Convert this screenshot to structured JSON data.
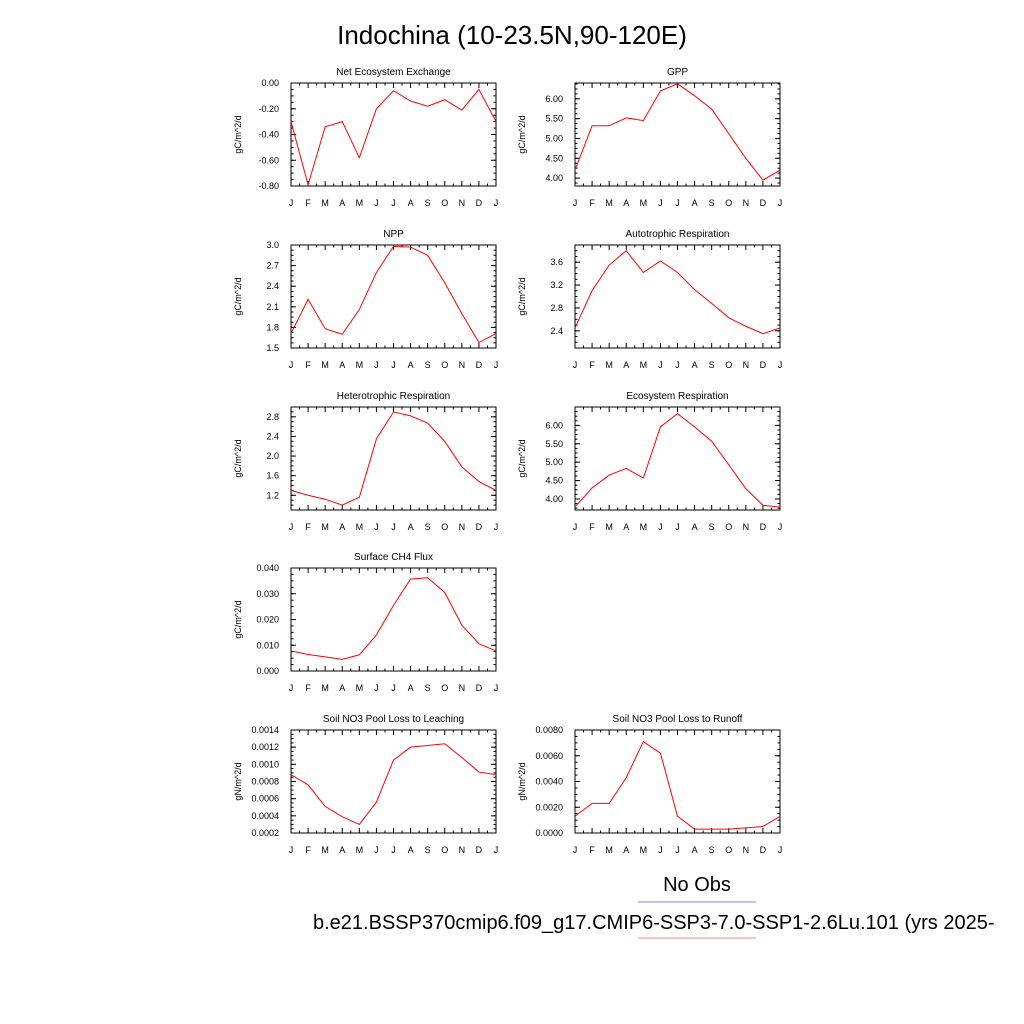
{
  "figure": {
    "title": "Indochina (10-23.5N,90-120E)",
    "legend_obs_label": "No Obs",
    "legend_case_label": "b.e21.BSSP370cmip6.f09_g17.CMIP6-SSP3-7.0-SSP1-2.6Lu.101 (yrs 2025-",
    "obs_color": "#8080ff",
    "case_color": "#ff8080",
    "series_color": "#ff0000"
  },
  "chart_data": [
    {
      "type": "line",
      "title": "Net Ecosystem Exchange",
      "ylabel": "gC/m^2/d",
      "categories": [
        "J",
        "F",
        "M",
        "A",
        "M",
        "J",
        "J",
        "A",
        "S",
        "O",
        "N",
        "D",
        "J"
      ],
      "values": [
        -0.3,
        -0.79,
        -0.34,
        -0.3,
        -0.58,
        -0.2,
        -0.06,
        -0.14,
        -0.18,
        -0.13,
        -0.21,
        -0.05,
        -0.3
      ],
      "ylim": [
        -0.8,
        0.0
      ],
      "yticks": [
        -0.8,
        -0.6,
        -0.4,
        -0.2,
        0.0
      ],
      "yticklabels": [
        "-0.80",
        "-0.60",
        "-0.40",
        "-0.20",
        "0.00"
      ]
    },
    {
      "type": "line",
      "title": "GPP",
      "ylabel": "gC/m^2/d",
      "categories": [
        "J",
        "F",
        "M",
        "A",
        "M",
        "J",
        "J",
        "A",
        "S",
        "O",
        "N",
        "D",
        "J"
      ],
      "values": [
        4.2,
        5.32,
        5.32,
        5.52,
        5.45,
        6.2,
        6.38,
        6.08,
        5.74,
        5.12,
        4.5,
        3.95,
        4.2
      ],
      "ylim": [
        3.8,
        6.4
      ],
      "yticks": [
        4.0,
        4.5,
        5.0,
        5.5,
        6.0
      ],
      "yticklabels": [
        "4.00",
        "4.50",
        "5.00",
        "5.50",
        "6.00"
      ]
    },
    {
      "type": "line",
      "title": "NPP",
      "ylabel": "gC/m^2/d",
      "categories": [
        "J",
        "F",
        "M",
        "A",
        "M",
        "J",
        "J",
        "A",
        "S",
        "O",
        "N",
        "D",
        "J"
      ],
      "values": [
        1.71,
        2.21,
        1.78,
        1.7,
        2.06,
        2.6,
        2.98,
        2.97,
        2.85,
        2.45,
        2.0,
        1.58,
        1.71
      ],
      "ylim": [
        1.5,
        3.0
      ],
      "yticks": [
        1.5,
        1.8,
        2.1,
        2.4,
        2.7,
        3.0
      ],
      "yticklabels": [
        "1.5",
        "1.8",
        "2.1",
        "2.4",
        "2.7",
        "3.0"
      ]
    },
    {
      "type": "line",
      "title": "Autotrophic Respiration",
      "ylabel": "gC/m^2/d",
      "categories": [
        "J",
        "F",
        "M",
        "A",
        "M",
        "J",
        "J",
        "A",
        "S",
        "O",
        "N",
        "D",
        "J"
      ],
      "values": [
        2.45,
        3.1,
        3.55,
        3.8,
        3.42,
        3.62,
        3.42,
        3.12,
        2.88,
        2.63,
        2.48,
        2.35,
        2.45
      ],
      "ylim": [
        2.1,
        3.9
      ],
      "yticks": [
        2.4,
        2.8,
        3.2,
        3.6
      ],
      "yticklabels": [
        "2.4",
        "2.8",
        "3.2",
        "3.6"
      ]
    },
    {
      "type": "line",
      "title": "Heterotrophic Respiration",
      "ylabel": "gC/m^2/d",
      "categories": [
        "J",
        "F",
        "M",
        "A",
        "M",
        "J",
        "J",
        "A",
        "S",
        "O",
        "N",
        "D",
        "J"
      ],
      "values": [
        1.3,
        1.2,
        1.12,
        1.0,
        1.16,
        2.35,
        2.9,
        2.82,
        2.67,
        2.3,
        1.78,
        1.48,
        1.3
      ],
      "ylim": [
        0.9,
        3.0
      ],
      "yticks": [
        1.2,
        1.6,
        2.0,
        2.4,
        2.8
      ],
      "yticklabels": [
        "1.2",
        "1.6",
        "2.0",
        "2.4",
        "2.8"
      ]
    },
    {
      "type": "line",
      "title": "Ecosystem Respiration",
      "ylabel": "gC/m^2/d",
      "categories": [
        "J",
        "F",
        "M",
        "A",
        "M",
        "J",
        "J",
        "A",
        "S",
        "O",
        "N",
        "D",
        "J"
      ],
      "values": [
        3.78,
        4.3,
        4.65,
        4.83,
        4.57,
        5.96,
        6.32,
        5.96,
        5.57,
        4.93,
        4.28,
        3.83,
        3.78
      ],
      "ylim": [
        3.7,
        6.5
      ],
      "yticks": [
        4.0,
        4.5,
        5.0,
        5.5,
        6.0
      ],
      "yticklabels": [
        "4.00",
        "4.50",
        "5.00",
        "5.50",
        "6.00"
      ]
    },
    {
      "type": "line",
      "title": "Surface CH4 Flux",
      "ylabel": "gC/m^2/d",
      "categories": [
        "J",
        "F",
        "M",
        "A",
        "M",
        "J",
        "J",
        "A",
        "S",
        "O",
        "N",
        "D",
        "J"
      ],
      "values": [
        0.0078,
        0.0064,
        0.0055,
        0.0045,
        0.0063,
        0.014,
        0.0255,
        0.0357,
        0.0362,
        0.0305,
        0.0178,
        0.0106,
        0.0078
      ],
      "ylim": [
        0.0,
        0.04
      ],
      "yticks": [
        0.0,
        0.01,
        0.02,
        0.03,
        0.04
      ],
      "yticklabels": [
        "0.000",
        "0.010",
        "0.020",
        "0.030",
        "0.040"
      ]
    },
    {
      "type": "line",
      "title": "Soil NO3 Pool Loss to Leaching",
      "ylabel": "gN/m^2/d",
      "categories": [
        "J",
        "F",
        "M",
        "A",
        "M",
        "J",
        "J",
        "A",
        "S",
        "O",
        "N",
        "D",
        "J"
      ],
      "values": [
        0.00088,
        0.00076,
        0.00051,
        0.00039,
        0.0003,
        0.00056,
        0.00105,
        0.0012,
        0.00122,
        0.00124,
        0.00108,
        0.00091,
        0.00088
      ],
      "ylim": [
        0.0002,
        0.0014
      ],
      "yticks": [
        0.0002,
        0.0004,
        0.0006,
        0.0008,
        0.001,
        0.0012,
        0.0014
      ],
      "yticklabels": [
        "0.0002",
        "0.0004",
        "0.0006",
        "0.0008",
        "0.0010",
        "0.0012",
        "0.0014"
      ]
    },
    {
      "type": "line",
      "title": "Soil NO3 Pool Loss to Runoff",
      "ylabel": "gN/m^2/d",
      "categories": [
        "J",
        "F",
        "M",
        "A",
        "M",
        "J",
        "J",
        "A",
        "S",
        "O",
        "N",
        "D",
        "J"
      ],
      "values": [
        0.0013,
        0.0023,
        0.0023,
        0.0043,
        0.0071,
        0.0062,
        0.0013,
        0.0003,
        0.0003,
        0.0003,
        0.0004,
        0.0005,
        0.0013
      ],
      "ylim": [
        0.0,
        0.008
      ],
      "yticks": [
        0.0,
        0.002,
        0.004,
        0.006,
        0.008
      ],
      "yticklabels": [
        "0.0000",
        "0.0020",
        "0.0040",
        "0.0060",
        "0.0080"
      ]
    }
  ]
}
